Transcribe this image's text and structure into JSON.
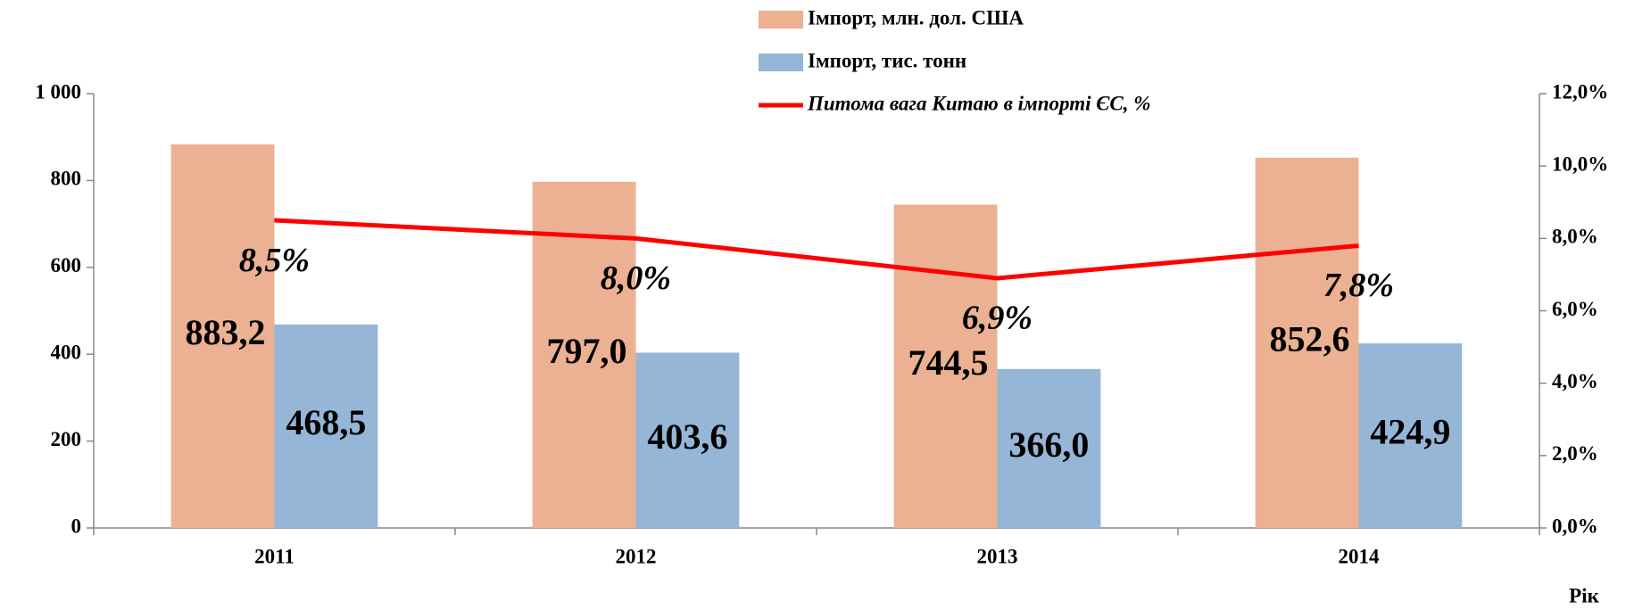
{
  "chart_data": {
    "type": "bar",
    "categories": [
      "2011",
      "2012",
      "2013",
      "2014"
    ],
    "x_label": "Рік",
    "series": [
      {
        "name": "Імпорт, млн. дол. США",
        "color": "#ebb192",
        "values": [
          883.2,
          797.0,
          744.5,
          852.6
        ],
        "value_labels": [
          "883,2",
          "797,0",
          "744,5",
          "852,6"
        ]
      },
      {
        "name": "Імпорт, тис. тонн",
        "color": "#95b6d6",
        "values": [
          468.5,
          403.6,
          366.0,
          424.9
        ],
        "value_labels": [
          "468,5",
          "403,6",
          "366,0",
          "424,9"
        ]
      },
      {
        "name": "Питома вага Китаю в імпорті ЄС, %",
        "type": "line",
        "axis": "y2",
        "color": "#ff0000",
        "values": [
          8.5,
          8.0,
          6.9,
          7.8
        ],
        "value_labels": [
          "8,5%",
          "8,0%",
          "6,9%",
          "7,8%"
        ]
      }
    ],
    "ylim": [
      0,
      1000
    ],
    "yticks": [
      0,
      200,
      400,
      600,
      800,
      {
        "value": 1000,
        "label": "1 000"
      }
    ],
    "y2lim": [
      0,
      12
    ],
    "y2ticks": [
      {
        "value": 0,
        "label": "0,0%"
      },
      {
        "value": 2,
        "label": "2,0%"
      },
      {
        "value": 4,
        "label": "4,0%"
      },
      {
        "value": 6,
        "label": "6,0%"
      },
      {
        "value": 8,
        "label": "8,0%"
      },
      {
        "value": 10,
        "label": "10,0%"
      },
      {
        "value": 12,
        "label": "12,0%"
      }
    ],
    "grid": false
  }
}
